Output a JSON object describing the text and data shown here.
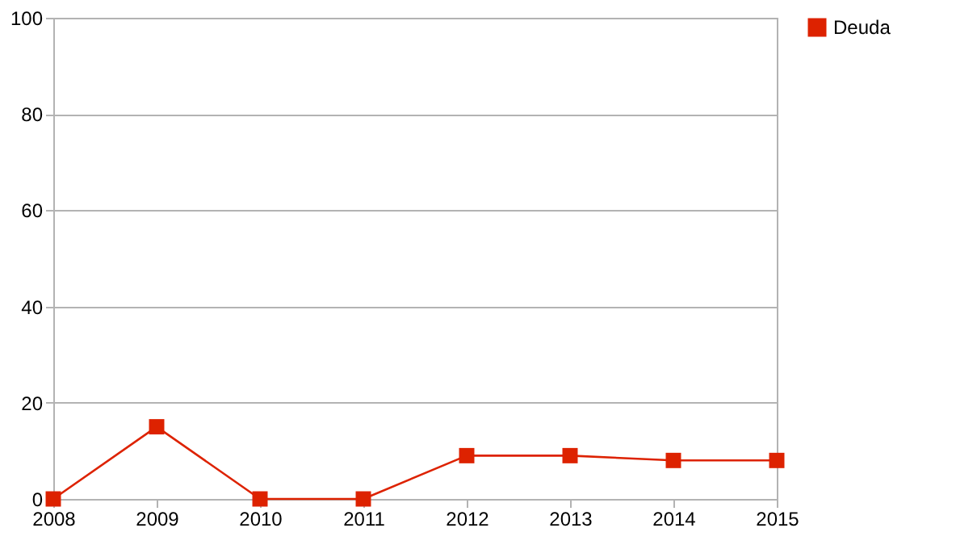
{
  "chart_data": {
    "type": "line",
    "categories": [
      "2008",
      "2009",
      "2010",
      "2011",
      "2012",
      "2013",
      "2014",
      "2015"
    ],
    "series": [
      {
        "name": "Deuda",
        "color": "#dd2200",
        "values": [
          0,
          15,
          0,
          0,
          9,
          9,
          8,
          8
        ]
      }
    ],
    "ylim": [
      0,
      100
    ],
    "yticks": [
      0,
      20,
      40,
      60,
      80,
      100
    ],
    "grid": "y",
    "legend": "right",
    "marker": "square",
    "line_style": "solid"
  }
}
